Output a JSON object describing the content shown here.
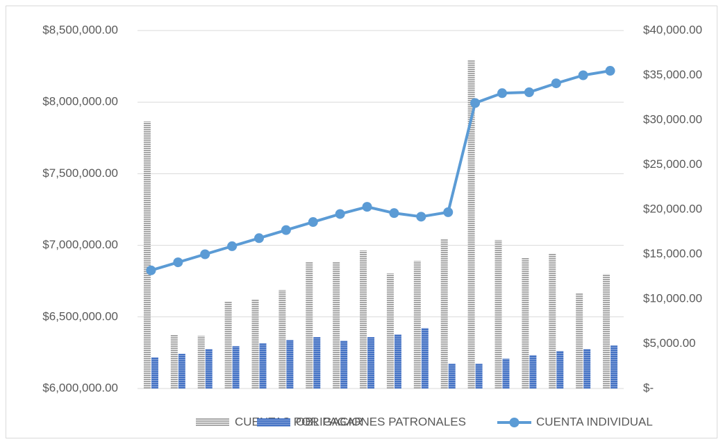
{
  "chart_data": {
    "type": "bar",
    "categories": [
      null,
      null,
      null,
      null,
      null,
      null,
      null,
      null,
      null,
      null,
      null,
      null,
      null,
      null,
      null,
      null,
      null,
      null
    ],
    "series": [
      {
        "name": "CUENTAS POR PAGAR",
        "color": "#a6a6a6",
        "values": [
          7865000,
          6378000,
          6368000,
          6606000,
          6625000,
          6688000,
          6887000,
          6887000,
          6964000,
          6804000,
          6891000,
          7047000,
          8297000,
          7037000,
          6911000,
          6945000,
          6669000,
          6800000
        ]
      },
      {
        "name": "OBLIGACIONES PATRONALES",
        "color": "#4472c4",
        "values": [
          6218000,
          6242000,
          6276000,
          6296000,
          6315000,
          6339000,
          6359000,
          6334000,
          6359000,
          6378000,
          6422000,
          6174000,
          6174000,
          6208000,
          6233000,
          6262000,
          6276000,
          6300000
        ]
      },
      {
        "name": "CUENTA INDIVIDUAL",
        "color": "#5b9bd5",
        "type": "line",
        "axis": "y2",
        "values": [
          13200,
          14100,
          15000,
          15900,
          16800,
          17700,
          18600,
          19500,
          20300,
          19600,
          19200,
          19700,
          31900,
          33000,
          33100,
          34100,
          35000,
          35500
        ]
      }
    ],
    "ylim": [
      6000000,
      8500000
    ],
    "yticks": [
      {
        "value": 6000000,
        "label": "$6,000,000.00"
      },
      {
        "value": 6500000,
        "label": "$6,500,000.00"
      },
      {
        "value": 7000000,
        "label": "$7,000,000.00"
      },
      {
        "value": 7500000,
        "label": "$7,500,000.00"
      },
      {
        "value": 8000000,
        "label": "$8,000,000.00"
      },
      {
        "value": 8500000,
        "label": "$8,500,000.00"
      }
    ],
    "y2lim": [
      0,
      40000
    ],
    "y2ticks": [
      {
        "value": 0,
        "label": "$-"
      },
      {
        "value": 5000,
        "label": "$5,000.00"
      },
      {
        "value": 10000,
        "label": "$10,000.00"
      },
      {
        "value": 15000,
        "label": "$15,000.00"
      },
      {
        "value": 20000,
        "label": "$20,000.00"
      },
      {
        "value": 25000,
        "label": "$25,000.00"
      },
      {
        "value": 30000,
        "label": "$30,000.00"
      },
      {
        "value": 35000,
        "label": "$35,000.00"
      },
      {
        "value": 40000,
        "label": "$40,000.00"
      }
    ],
    "grid": true,
    "legend": "bottom"
  }
}
